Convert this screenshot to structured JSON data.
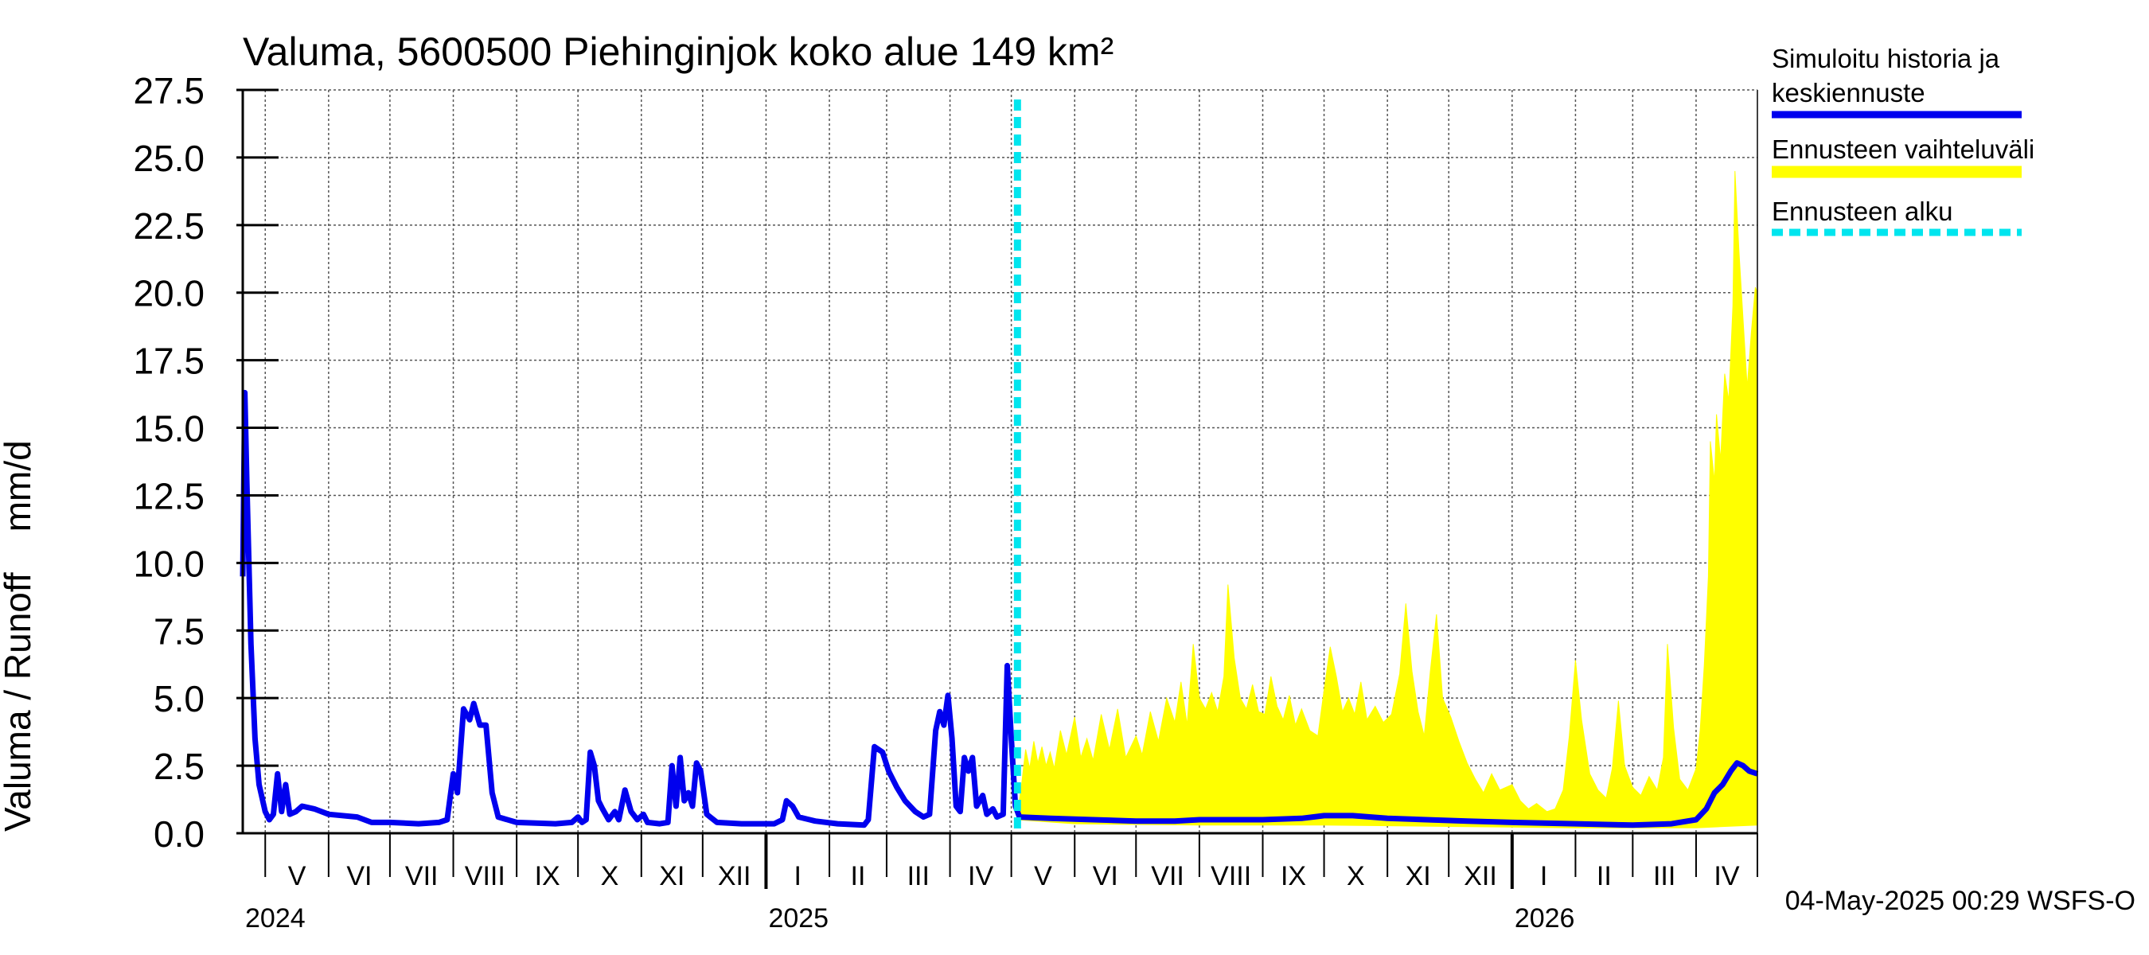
{
  "chart_data": {
    "type": "line",
    "title": "Valuma, 5600500 Piehinginjok koko alue 149 km²",
    "ylabel": "Valuma / Runoff    mm/d",
    "ylim": [
      0,
      27.5
    ],
    "yticks": [
      "0.0",
      "2.5",
      "5.0",
      "7.5",
      "10.0",
      "12.5",
      "15.0",
      "17.5",
      "20.0",
      "22.5",
      "25.0",
      "27.5"
    ],
    "xlim": [
      "2024-04-20",
      "2026-05-01"
    ],
    "grid": true,
    "legend_position": "right",
    "month_labels": [
      {
        "label": "V",
        "start": "2024-05-01"
      },
      {
        "label": "VI",
        "start": "2024-06-01"
      },
      {
        "label": "VII",
        "start": "2024-07-01"
      },
      {
        "label": "VIII",
        "start": "2024-08-01"
      },
      {
        "label": "IX",
        "start": "2024-09-01"
      },
      {
        "label": "X",
        "start": "2024-10-01"
      },
      {
        "label": "XI",
        "start": "2024-11-01"
      },
      {
        "label": "XII",
        "start": "2024-12-01"
      },
      {
        "label": "I",
        "start": "2025-01-01"
      },
      {
        "label": "II",
        "start": "2025-02-01"
      },
      {
        "label": "III",
        "start": "2025-03-01"
      },
      {
        "label": "IV",
        "start": "2025-04-01"
      },
      {
        "label": "V",
        "start": "2025-05-01"
      },
      {
        "label": "VI",
        "start": "2025-06-01"
      },
      {
        "label": "VII",
        "start": "2025-07-01"
      },
      {
        "label": "VIII",
        "start": "2025-08-01"
      },
      {
        "label": "IX",
        "start": "2025-09-01"
      },
      {
        "label": "X",
        "start": "2025-10-01"
      },
      {
        "label": "XI",
        "start": "2025-11-01"
      },
      {
        "label": "XII",
        "start": "2025-12-01"
      },
      {
        "label": "I",
        "start": "2026-01-01"
      },
      {
        "label": "II",
        "start": "2026-02-01"
      },
      {
        "label": "III",
        "start": "2026-03-01"
      },
      {
        "label": "IV",
        "start": "2026-04-01"
      }
    ],
    "year_labels": [
      {
        "label": "2024",
        "date": "2024-05-01"
      },
      {
        "label": "2025",
        "date": "2025-01-01"
      },
      {
        "label": "2026",
        "date": "2026-01-01"
      }
    ],
    "forecast_start": "2025-05-04",
    "series": [
      {
        "name": "Simuloitu historia ja keskiennuste",
        "color": "#0000ee",
        "points": [
          [
            "2024-04-20",
            9.5
          ],
          [
            "2024-04-21",
            16.3
          ],
          [
            "2024-04-22",
            13.0
          ],
          [
            "2024-04-24",
            7.0
          ],
          [
            "2024-04-26",
            3.5
          ],
          [
            "2024-04-28",
            1.8
          ],
          [
            "2024-05-01",
            0.8
          ],
          [
            "2024-05-03",
            0.5
          ],
          [
            "2024-05-05",
            0.7
          ],
          [
            "2024-05-07",
            2.2
          ],
          [
            "2024-05-09",
            0.8
          ],
          [
            "2024-05-11",
            1.8
          ],
          [
            "2024-05-13",
            0.7
          ],
          [
            "2024-05-16",
            0.8
          ],
          [
            "2024-05-19",
            1.0
          ],
          [
            "2024-05-25",
            0.9
          ],
          [
            "2024-06-01",
            0.7
          ],
          [
            "2024-06-15",
            0.6
          ],
          [
            "2024-06-22",
            0.4
          ],
          [
            "2024-07-01",
            0.4
          ],
          [
            "2024-07-15",
            0.35
          ],
          [
            "2024-07-25",
            0.4
          ],
          [
            "2024-07-29",
            0.5
          ],
          [
            "2024-08-01",
            2.2
          ],
          [
            "2024-08-03",
            1.5
          ],
          [
            "2024-08-06",
            4.6
          ],
          [
            "2024-08-09",
            4.2
          ],
          [
            "2024-08-11",
            4.8
          ],
          [
            "2024-08-14",
            4.0
          ],
          [
            "2024-08-17",
            4.0
          ],
          [
            "2024-08-20",
            1.5
          ],
          [
            "2024-08-23",
            0.6
          ],
          [
            "2024-09-01",
            0.4
          ],
          [
            "2024-09-20",
            0.35
          ],
          [
            "2024-09-28",
            0.4
          ],
          [
            "2024-10-01",
            0.6
          ],
          [
            "2024-10-03",
            0.4
          ],
          [
            "2024-10-05",
            0.5
          ],
          [
            "2024-10-07",
            3.0
          ],
          [
            "2024-10-09",
            2.5
          ],
          [
            "2024-10-11",
            1.2
          ],
          [
            "2024-10-13",
            0.9
          ],
          [
            "2024-10-16",
            0.5
          ],
          [
            "2024-10-19",
            0.8
          ],
          [
            "2024-10-21",
            0.5
          ],
          [
            "2024-10-24",
            1.6
          ],
          [
            "2024-10-27",
            0.8
          ],
          [
            "2024-10-30",
            0.5
          ],
          [
            "2024-11-02",
            0.7
          ],
          [
            "2024-11-04",
            0.4
          ],
          [
            "2024-11-10",
            0.35
          ],
          [
            "2024-11-14",
            0.4
          ],
          [
            "2024-11-16",
            2.5
          ],
          [
            "2024-11-18",
            1.0
          ],
          [
            "2024-11-20",
            2.8
          ],
          [
            "2024-11-22",
            1.2
          ],
          [
            "2024-11-24",
            1.5
          ],
          [
            "2024-11-26",
            1.0
          ],
          [
            "2024-11-28",
            2.6
          ],
          [
            "2024-11-30",
            2.3
          ],
          [
            "2024-12-03",
            0.7
          ],
          [
            "2024-12-08",
            0.4
          ],
          [
            "2024-12-20",
            0.35
          ],
          [
            "2025-01-05",
            0.35
          ],
          [
            "2025-01-09",
            0.5
          ],
          [
            "2025-01-11",
            1.2
          ],
          [
            "2025-01-14",
            1.0
          ],
          [
            "2025-01-17",
            0.6
          ],
          [
            "2025-01-25",
            0.45
          ],
          [
            "2025-02-05",
            0.35
          ],
          [
            "2025-02-18",
            0.3
          ],
          [
            "2025-02-20",
            0.5
          ],
          [
            "2025-02-23",
            3.2
          ],
          [
            "2025-02-27",
            3.0
          ],
          [
            "2025-03-02",
            2.3
          ],
          [
            "2025-03-06",
            1.7
          ],
          [
            "2025-03-10",
            1.2
          ],
          [
            "2025-03-15",
            0.8
          ],
          [
            "2025-03-19",
            0.6
          ],
          [
            "2025-03-22",
            0.7
          ],
          [
            "2025-03-25",
            3.8
          ],
          [
            "2025-03-27",
            4.5
          ],
          [
            "2025-03-29",
            4.0
          ],
          [
            "2025-03-31",
            5.1
          ],
          [
            "2025-04-02",
            3.5
          ],
          [
            "2025-04-04",
            1.0
          ],
          [
            "2025-04-06",
            0.8
          ],
          [
            "2025-04-08",
            2.8
          ],
          [
            "2025-04-10",
            2.3
          ],
          [
            "2025-04-12",
            2.8
          ],
          [
            "2025-04-14",
            1.0
          ],
          [
            "2025-04-17",
            1.4
          ],
          [
            "2025-04-19",
            0.7
          ],
          [
            "2025-04-22",
            0.9
          ],
          [
            "2025-04-24",
            0.6
          ],
          [
            "2025-04-27",
            0.7
          ],
          [
            "2025-04-29",
            6.2
          ],
          [
            "2025-05-01",
            3.5
          ],
          [
            "2025-05-03",
            1.0
          ],
          [
            "2025-05-05",
            0.6
          ],
          [
            "2025-05-20",
            0.55
          ],
          [
            "2025-06-10",
            0.5
          ],
          [
            "2025-07-01",
            0.45
          ],
          [
            "2025-07-20",
            0.45
          ],
          [
            "2025-08-01",
            0.5
          ],
          [
            "2025-08-20",
            0.5
          ],
          [
            "2025-09-01",
            0.5
          ],
          [
            "2025-09-20",
            0.55
          ],
          [
            "2025-10-01",
            0.65
          ],
          [
            "2025-10-15",
            0.65
          ],
          [
            "2025-11-01",
            0.55
          ],
          [
            "2025-11-20",
            0.5
          ],
          [
            "2025-12-10",
            0.45
          ],
          [
            "2026-01-01",
            0.4
          ],
          [
            "2026-02-01",
            0.35
          ],
          [
            "2026-03-01",
            0.3
          ],
          [
            "2026-03-20",
            0.35
          ],
          [
            "2026-04-01",
            0.5
          ],
          [
            "2026-04-06",
            0.9
          ],
          [
            "2026-04-10",
            1.5
          ],
          [
            "2026-04-14",
            1.8
          ],
          [
            "2026-04-18",
            2.3
          ],
          [
            "2026-04-21",
            2.6
          ],
          [
            "2026-04-24",
            2.5
          ],
          [
            "2026-04-27",
            2.3
          ],
          [
            "2026-05-01",
            2.2
          ]
        ]
      },
      {
        "name": "Ennusteen vaihteluväli",
        "color": "#ffff00",
        "band_high": [
          [
            "2025-05-04",
            0.7
          ],
          [
            "2025-05-06",
            1.8
          ],
          [
            "2025-05-08",
            3.1
          ],
          [
            "2025-05-10",
            2.4
          ],
          [
            "2025-05-12",
            3.4
          ],
          [
            "2025-05-14",
            2.6
          ],
          [
            "2025-05-16",
            3.2
          ],
          [
            "2025-05-18",
            2.5
          ],
          [
            "2025-05-20",
            3.0
          ],
          [
            "2025-05-22",
            2.4
          ],
          [
            "2025-05-25",
            3.8
          ],
          [
            "2025-05-28",
            2.9
          ],
          [
            "2025-06-01",
            4.3
          ],
          [
            "2025-06-04",
            2.8
          ],
          [
            "2025-06-07",
            3.5
          ],
          [
            "2025-06-10",
            2.7
          ],
          [
            "2025-06-14",
            4.4
          ],
          [
            "2025-06-18",
            3.1
          ],
          [
            "2025-06-22",
            4.6
          ],
          [
            "2025-06-26",
            2.8
          ],
          [
            "2025-07-01",
            3.6
          ],
          [
            "2025-07-04",
            2.9
          ],
          [
            "2025-07-08",
            4.5
          ],
          [
            "2025-07-12",
            3.4
          ],
          [
            "2025-07-16",
            5.0
          ],
          [
            "2025-07-20",
            4.1
          ],
          [
            "2025-07-23",
            5.6
          ],
          [
            "2025-07-26",
            4.0
          ],
          [
            "2025-07-29",
            7.0
          ],
          [
            "2025-08-01",
            5.0
          ],
          [
            "2025-08-04",
            4.6
          ],
          [
            "2025-08-07",
            5.2
          ],
          [
            "2025-08-10",
            4.5
          ],
          [
            "2025-08-13",
            5.8
          ],
          [
            "2025-08-15",
            9.2
          ],
          [
            "2025-08-18",
            6.5
          ],
          [
            "2025-08-21",
            5.0
          ],
          [
            "2025-08-24",
            4.6
          ],
          [
            "2025-08-27",
            5.5
          ],
          [
            "2025-08-30",
            4.5
          ],
          [
            "2025-09-02",
            4.4
          ],
          [
            "2025-09-05",
            5.8
          ],
          [
            "2025-09-08",
            4.7
          ],
          [
            "2025-09-11",
            4.2
          ],
          [
            "2025-09-14",
            5.1
          ],
          [
            "2025-09-17",
            4.0
          ],
          [
            "2025-09-20",
            4.6
          ],
          [
            "2025-09-24",
            3.8
          ],
          [
            "2025-09-28",
            3.6
          ],
          [
            "2025-10-01",
            5.3
          ],
          [
            "2025-10-04",
            6.9
          ],
          [
            "2025-10-07",
            5.8
          ],
          [
            "2025-10-10",
            4.5
          ],
          [
            "2025-10-13",
            5.0
          ],
          [
            "2025-10-16",
            4.4
          ],
          [
            "2025-10-19",
            5.6
          ],
          [
            "2025-10-22",
            4.2
          ],
          [
            "2025-10-26",
            4.7
          ],
          [
            "2025-10-30",
            4.1
          ],
          [
            "2025-11-03",
            4.4
          ],
          [
            "2025-11-07",
            5.9
          ],
          [
            "2025-11-10",
            8.5
          ],
          [
            "2025-11-13",
            6.0
          ],
          [
            "2025-11-16",
            4.5
          ],
          [
            "2025-11-19",
            3.6
          ],
          [
            "2025-11-22",
            6.0
          ],
          [
            "2025-11-25",
            8.1
          ],
          [
            "2025-11-28",
            5.0
          ],
          [
            "2025-12-02",
            4.3
          ],
          [
            "2025-12-06",
            3.4
          ],
          [
            "2025-12-10",
            2.6
          ],
          [
            "2025-12-14",
            2.0
          ],
          [
            "2025-12-18",
            1.5
          ],
          [
            "2025-12-22",
            2.2
          ],
          [
            "2025-12-26",
            1.6
          ],
          [
            "2026-01-01",
            1.8
          ],
          [
            "2026-01-05",
            1.2
          ],
          [
            "2026-01-09",
            0.9
          ],
          [
            "2026-01-13",
            1.1
          ],
          [
            "2026-01-18",
            0.8
          ],
          [
            "2026-01-22",
            0.9
          ],
          [
            "2026-01-26",
            1.6
          ],
          [
            "2026-01-29",
            3.6
          ],
          [
            "2026-02-01",
            6.4
          ],
          [
            "2026-02-04",
            4.2
          ],
          [
            "2026-02-08",
            2.2
          ],
          [
            "2026-02-12",
            1.6
          ],
          [
            "2026-02-16",
            1.3
          ],
          [
            "2026-02-19",
            2.4
          ],
          [
            "2026-02-22",
            4.9
          ],
          [
            "2026-02-25",
            2.5
          ],
          [
            "2026-03-01",
            1.7
          ],
          [
            "2026-03-05",
            1.4
          ],
          [
            "2026-03-09",
            2.1
          ],
          [
            "2026-03-13",
            1.6
          ],
          [
            "2026-03-16",
            2.8
          ],
          [
            "2026-03-18",
            7.0
          ],
          [
            "2026-03-21",
            3.9
          ],
          [
            "2026-03-24",
            2.0
          ],
          [
            "2026-03-28",
            1.6
          ],
          [
            "2026-04-01",
            2.4
          ],
          [
            "2026-04-03",
            3.8
          ],
          [
            "2026-04-05",
            6.2
          ],
          [
            "2026-04-07",
            9.5
          ],
          [
            "2026-04-08",
            14.5
          ],
          [
            "2026-04-10",
            13.0
          ],
          [
            "2026-04-11",
            15.5
          ],
          [
            "2026-04-13",
            13.8
          ],
          [
            "2026-04-15",
            17.0
          ],
          [
            "2026-04-17",
            16.0
          ],
          [
            "2026-04-19",
            19.5
          ],
          [
            "2026-04-20",
            24.5
          ],
          [
            "2026-04-22",
            21.5
          ],
          [
            "2026-04-24",
            19.0
          ],
          [
            "2026-04-26",
            16.5
          ],
          [
            "2026-04-28",
            18.5
          ],
          [
            "2026-04-30",
            20.2
          ],
          [
            "2026-05-01",
            20.0
          ]
        ],
        "band_low": [
          [
            "2025-05-04",
            0.5
          ],
          [
            "2025-06-01",
            0.35
          ],
          [
            "2025-08-01",
            0.3
          ],
          [
            "2025-10-01",
            0.3
          ],
          [
            "2025-12-01",
            0.25
          ],
          [
            "2026-02-01",
            0.2
          ],
          [
            "2026-04-01",
            0.2
          ],
          [
            "2026-04-15",
            0.25
          ],
          [
            "2026-05-01",
            0.3
          ]
        ]
      },
      {
        "name": "Ennusteen alku",
        "color": "#00e5ee"
      }
    ],
    "timestamp": "04-May-2025 00:29 WSFS-O"
  }
}
